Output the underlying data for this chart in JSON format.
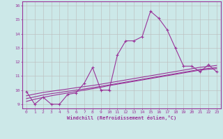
{
  "xlabel": "Windchill (Refroidissement éolien,°C)",
  "x_values": [
    0,
    1,
    2,
    3,
    4,
    5,
    6,
    7,
    8,
    9,
    10,
    11,
    12,
    13,
    14,
    15,
    16,
    17,
    18,
    19,
    20,
    21,
    22,
    23
  ],
  "line1": [
    9.9,
    9.0,
    9.5,
    9.0,
    9.0,
    9.7,
    9.8,
    10.5,
    11.6,
    10.0,
    10.0,
    12.5,
    13.5,
    13.5,
    13.8,
    15.6,
    15.1,
    14.3,
    13.0,
    11.7,
    11.7,
    11.3,
    11.8,
    11.3
  ],
  "line2": [
    9.2,
    9.35,
    9.48,
    9.6,
    9.7,
    9.8,
    9.9,
    10.0,
    10.1,
    10.2,
    10.32,
    10.42,
    10.52,
    10.62,
    10.72,
    10.82,
    10.92,
    11.02,
    11.12,
    11.22,
    11.32,
    11.42,
    11.48,
    11.52
  ],
  "line3": [
    9.4,
    9.52,
    9.65,
    9.75,
    9.83,
    9.92,
    10.0,
    10.08,
    10.17,
    10.27,
    10.37,
    10.47,
    10.57,
    10.67,
    10.77,
    10.87,
    10.97,
    11.07,
    11.17,
    11.27,
    11.37,
    11.47,
    11.54,
    11.6
  ],
  "line4": [
    9.6,
    9.72,
    9.83,
    9.92,
    10.0,
    10.08,
    10.17,
    10.25,
    10.33,
    10.42,
    10.52,
    10.62,
    10.72,
    10.82,
    10.92,
    11.02,
    11.12,
    11.22,
    11.32,
    11.42,
    11.52,
    11.62,
    11.68,
    11.75
  ],
  "ylim": [
    8.7,
    16.3
  ],
  "xlim": [
    -0.5,
    23.5
  ],
  "yticks": [
    9,
    10,
    11,
    12,
    13,
    14,
    15,
    16
  ],
  "xticks": [
    0,
    1,
    2,
    3,
    4,
    5,
    6,
    7,
    8,
    9,
    10,
    11,
    12,
    13,
    14,
    15,
    16,
    17,
    18,
    19,
    20,
    21,
    22,
    23
  ],
  "line_color": "#993399",
  "bg_color": "#cce8e8",
  "grid_color": "#bbbbbb",
  "marker": "+"
}
